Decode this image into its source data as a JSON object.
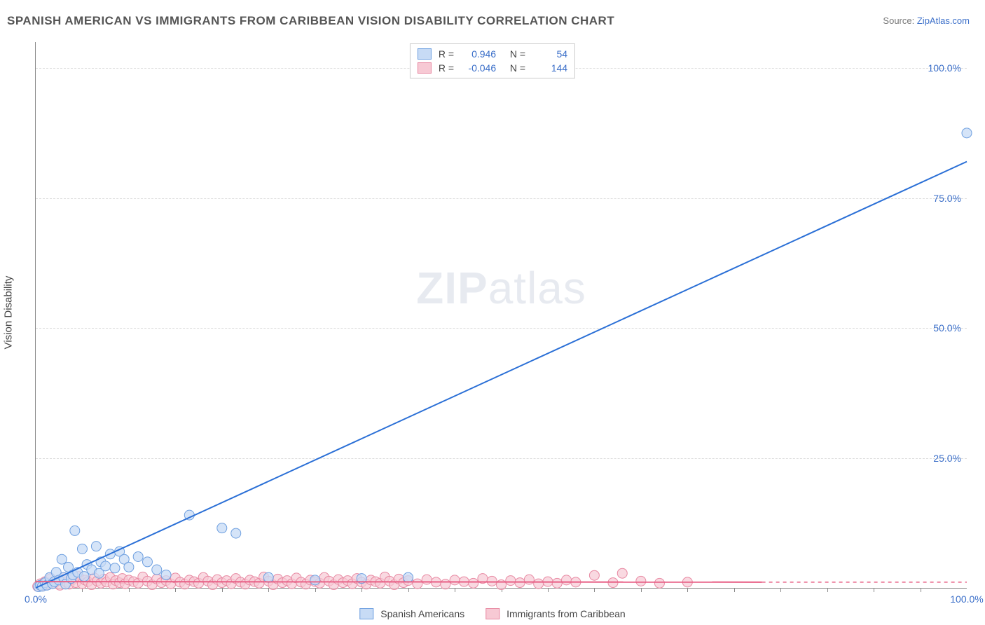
{
  "title": "SPANISH AMERICAN VS IMMIGRANTS FROM CARIBBEAN VISION DISABILITY CORRELATION CHART",
  "source_label": "Source:",
  "source_name": "ZipAtlas.com",
  "watermark_zip": "ZIP",
  "watermark_atlas": "atlas",
  "y_axis_label": "Vision Disability",
  "chart": {
    "type": "scatter+regression",
    "xlim": [
      0,
      100
    ],
    "ylim": [
      0,
      105
    ],
    "x_ticks_major": [
      0,
      100
    ],
    "x_tick_labels": [
      "0.0%",
      "100.0%"
    ],
    "x_ticks_minor_step": 5,
    "y_ticks": [
      25,
      50,
      75,
      100
    ],
    "y_tick_labels": [
      "25.0%",
      "50.0%",
      "75.0%",
      "100.0%"
    ],
    "background_color": "#ffffff",
    "grid_color": "#dddddd",
    "axis_color": "#888888",
    "tick_label_color": "#3b6fc9"
  },
  "series": {
    "blue": {
      "name": "Spanish Americans",
      "fill": "#c7dbf5",
      "stroke": "#6fa0e0",
      "line_color": "#2a6fd6",
      "marker_radius": 7,
      "marker_opacity": 0.75,
      "r_value": "0.946",
      "n_value": "54",
      "regression": {
        "x1": 0,
        "y1": 0,
        "x2": 100,
        "y2": 82
      },
      "points": [
        [
          0.3,
          0.2
        ],
        [
          0.5,
          0.5
        ],
        [
          0.7,
          0.3
        ],
        [
          1.0,
          1.0
        ],
        [
          1.2,
          0.5
        ],
        [
          1.5,
          2.0
        ],
        [
          1.8,
          0.8
        ],
        [
          2.0,
          1.2
        ],
        [
          2.2,
          3.0
        ],
        [
          2.5,
          1.5
        ],
        [
          2.8,
          5.5
        ],
        [
          3.0,
          2.0
        ],
        [
          3.2,
          0.7
        ],
        [
          3.5,
          4.0
        ],
        [
          3.8,
          1.8
        ],
        [
          4.0,
          2.5
        ],
        [
          4.2,
          11.0
        ],
        [
          4.5,
          3.0
        ],
        [
          5.0,
          7.5
        ],
        [
          5.2,
          2.2
        ],
        [
          5.5,
          4.5
        ],
        [
          6.0,
          3.5
        ],
        [
          6.5,
          8.0
        ],
        [
          6.8,
          2.8
        ],
        [
          7.0,
          5.0
        ],
        [
          7.5,
          4.2
        ],
        [
          8.0,
          6.5
        ],
        [
          8.5,
          3.8
        ],
        [
          9.0,
          7.0
        ],
        [
          9.5,
          5.5
        ],
        [
          10.0,
          4.0
        ],
        [
          11.0,
          6.0
        ],
        [
          12.0,
          5.0
        ],
        [
          13.0,
          3.5
        ],
        [
          14.0,
          2.5
        ],
        [
          16.5,
          14.0
        ],
        [
          20.0,
          11.5
        ],
        [
          21.5,
          10.5
        ],
        [
          25.0,
          2.0
        ],
        [
          30.0,
          1.5
        ],
        [
          35.0,
          1.8
        ],
        [
          40.0,
          2.0
        ],
        [
          100.0,
          87.5
        ]
      ]
    },
    "pink": {
      "name": "Immigrants from Caribbean",
      "fill": "#f7c9d4",
      "stroke": "#e88aa3",
      "line_color": "#e85f85",
      "marker_radius": 7,
      "marker_opacity": 0.7,
      "r_value": "-0.046",
      "n_value": "144",
      "regression": {
        "x1": 0,
        "y1": 1.2,
        "x2": 78,
        "y2": 1.1
      },
      "dashed_extension": {
        "x1": 78,
        "y1": 1.1,
        "x2": 100,
        "y2": 1.1
      },
      "points": [
        [
          0.2,
          0.3
        ],
        [
          0.5,
          0.8
        ],
        [
          0.8,
          0.4
        ],
        [
          1.0,
          1.2
        ],
        [
          1.3,
          0.6
        ],
        [
          1.6,
          1.8
        ],
        [
          2.0,
          0.9
        ],
        [
          2.3,
          1.4
        ],
        [
          2.6,
          0.5
        ],
        [
          3.0,
          2.0
        ],
        [
          3.3,
          1.1
        ],
        [
          3.6,
          0.7
        ],
        [
          4.0,
          1.6
        ],
        [
          4.3,
          1.0
        ],
        [
          4.6,
          2.2
        ],
        [
          5.0,
          0.8
        ],
        [
          5.3,
          1.5
        ],
        [
          5.6,
          1.2
        ],
        [
          6.0,
          0.6
        ],
        [
          6.3,
          1.9
        ],
        [
          6.6,
          1.3
        ],
        [
          7.0,
          0.9
        ],
        [
          7.3,
          1.7
        ],
        [
          7.6,
          1.1
        ],
        [
          8.0,
          2.0
        ],
        [
          8.3,
          0.7
        ],
        [
          8.6,
          1.4
        ],
        [
          9.0,
          1.0
        ],
        [
          9.3,
          1.8
        ],
        [
          9.6,
          0.8
        ],
        [
          10.0,
          1.5
        ],
        [
          10.5,
          1.2
        ],
        [
          11.0,
          0.9
        ],
        [
          11.5,
          2.1
        ],
        [
          12.0,
          1.3
        ],
        [
          12.5,
          0.6
        ],
        [
          13.0,
          1.7
        ],
        [
          13.5,
          1.0
        ],
        [
          14.0,
          1.4
        ],
        [
          14.5,
          0.8
        ],
        [
          15.0,
          1.9
        ],
        [
          15.5,
          1.1
        ],
        [
          16.0,
          0.7
        ],
        [
          16.5,
          1.5
        ],
        [
          17.0,
          1.2
        ],
        [
          17.5,
          0.9
        ],
        [
          18.0,
          2.0
        ],
        [
          18.5,
          1.3
        ],
        [
          19.0,
          0.6
        ],
        [
          19.5,
          1.6
        ],
        [
          20.0,
          1.0
        ],
        [
          20.5,
          1.4
        ],
        [
          21.0,
          0.8
        ],
        [
          21.5,
          1.8
        ],
        [
          22.0,
          1.1
        ],
        [
          22.5,
          0.7
        ],
        [
          23.0,
          1.5
        ],
        [
          23.5,
          1.2
        ],
        [
          24.0,
          0.9
        ],
        [
          24.5,
          2.1
        ],
        [
          25.0,
          1.3
        ],
        [
          25.5,
          0.6
        ],
        [
          26.0,
          1.7
        ],
        [
          26.5,
          1.0
        ],
        [
          27.0,
          1.4
        ],
        [
          27.5,
          0.8
        ],
        [
          28.0,
          1.9
        ],
        [
          28.5,
          1.1
        ],
        [
          29.0,
          0.7
        ],
        [
          29.5,
          1.5
        ],
        [
          30.0,
          1.2
        ],
        [
          30.5,
          0.9
        ],
        [
          31.0,
          2.0
        ],
        [
          31.5,
          1.3
        ],
        [
          32.0,
          0.6
        ],
        [
          32.5,
          1.6
        ],
        [
          33.0,
          1.0
        ],
        [
          33.5,
          1.4
        ],
        [
          34.0,
          0.8
        ],
        [
          34.5,
          1.8
        ],
        [
          35.0,
          1.1
        ],
        [
          35.5,
          0.7
        ],
        [
          36.0,
          1.5
        ],
        [
          36.5,
          1.2
        ],
        [
          37.0,
          0.9
        ],
        [
          37.5,
          2.1
        ],
        [
          38.0,
          1.3
        ],
        [
          38.5,
          0.6
        ],
        [
          39.0,
          1.7
        ],
        [
          39.5,
          1.0
        ],
        [
          40.0,
          1.4
        ],
        [
          41.0,
          0.8
        ],
        [
          42.0,
          1.6
        ],
        [
          43.0,
          1.1
        ],
        [
          44.0,
          0.7
        ],
        [
          45.0,
          1.5
        ],
        [
          46.0,
          1.2
        ],
        [
          47.0,
          0.9
        ],
        [
          48.0,
          1.8
        ],
        [
          49.0,
          1.3
        ],
        [
          50.0,
          0.6
        ],
        [
          51.0,
          1.4
        ],
        [
          52.0,
          1.0
        ],
        [
          53.0,
          1.6
        ],
        [
          54.0,
          0.8
        ],
        [
          55.0,
          1.2
        ],
        [
          56.0,
          0.9
        ],
        [
          57.0,
          1.5
        ],
        [
          58.0,
          1.1
        ],
        [
          60.0,
          2.4
        ],
        [
          62.0,
          1.0
        ],
        [
          63.0,
          2.8
        ],
        [
          65.0,
          1.3
        ],
        [
          67.0,
          0.9
        ],
        [
          70.0,
          1.1
        ]
      ]
    }
  },
  "legend_top": {
    "r_label": "R =",
    "n_label": "N ="
  },
  "legend_bottom": {
    "blue_label": "Spanish Americans",
    "pink_label": "Immigrants from Caribbean"
  }
}
